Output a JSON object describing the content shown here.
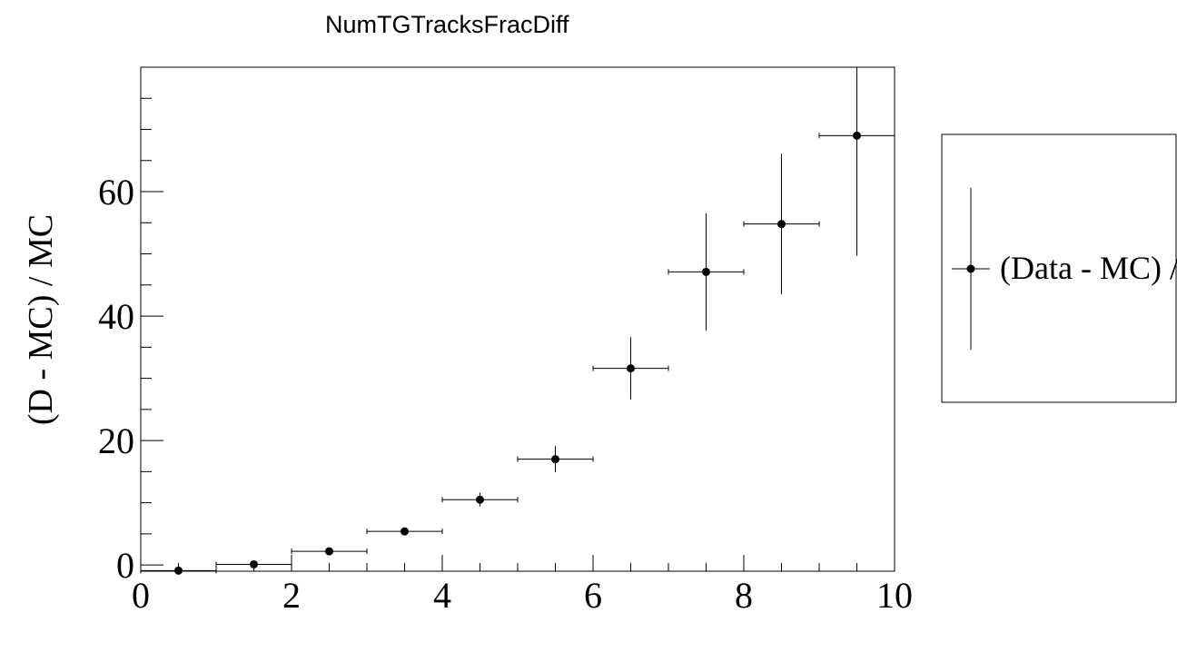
{
  "chart_data": {
    "type": "scatter",
    "title": "NumTGTracksFracDiff",
    "xlabel": "",
    "ylabel": "(D - MC) / MC",
    "xlim": [
      0,
      10
    ],
    "ylim": [
      -1,
      80
    ],
    "x_ticks": [
      0,
      2,
      4,
      6,
      8,
      10
    ],
    "y_ticks": [
      0,
      20,
      40,
      60
    ],
    "grid": false,
    "legend_position": "right",
    "series": [
      {
        "name": "(Data - MC) /",
        "marker": "circle",
        "color": "#000000",
        "points": [
          {
            "x": 0.5,
            "y": -0.9,
            "xerr": 0.5,
            "yerr": 0.2
          },
          {
            "x": 1.5,
            "y": 0.1,
            "xerr": 0.5,
            "yerr": 0.3
          },
          {
            "x": 2.5,
            "y": 2.2,
            "xerr": 0.5,
            "yerr": 0.4
          },
          {
            "x": 3.5,
            "y": 5.4,
            "xerr": 0.5,
            "yerr": 0.6
          },
          {
            "x": 4.5,
            "y": 10.5,
            "xerr": 0.5,
            "yerr": 1.1
          },
          {
            "x": 5.5,
            "y": 17.0,
            "xerr": 0.5,
            "yerr": 2.1
          },
          {
            "x": 6.5,
            "y": 31.6,
            "xerr": 0.5,
            "yerr": 5.0
          },
          {
            "x": 7.5,
            "y": 47.1,
            "xerr": 0.5,
            "yerr": 9.4
          },
          {
            "x": 8.5,
            "y": 54.8,
            "xerr": 0.5,
            "yerr": 11.3
          },
          {
            "x": 9.5,
            "y": 69.0,
            "xerr": 0.5,
            "yerr": 19.3
          }
        ]
      }
    ]
  }
}
